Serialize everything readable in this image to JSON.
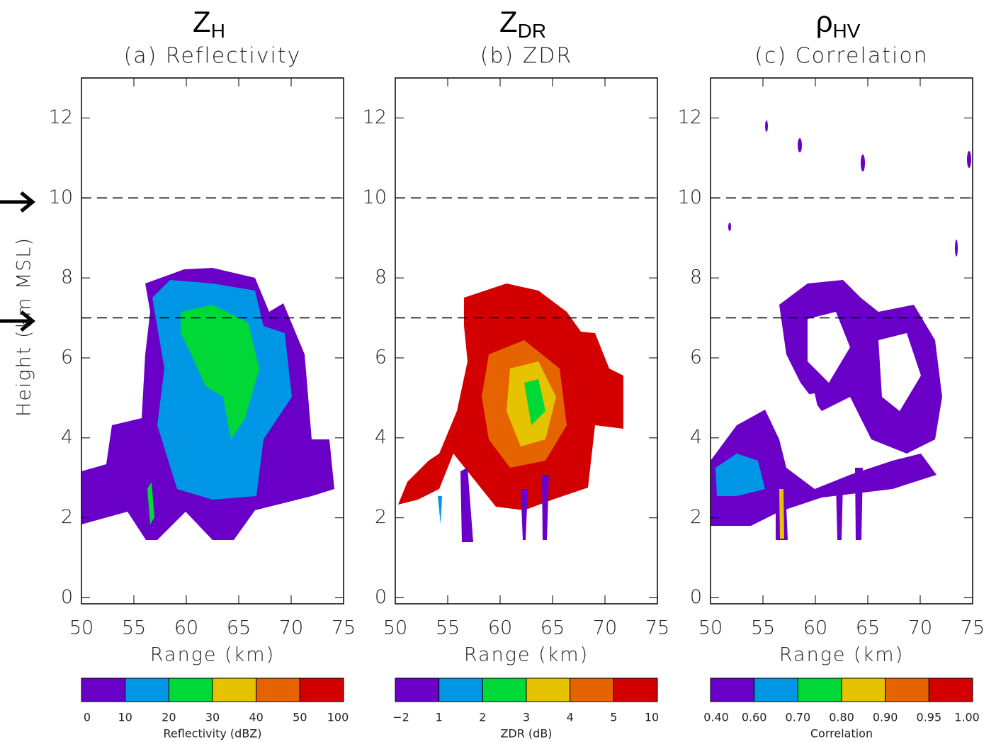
{
  "chart_data": [
    {
      "type": "contour",
      "symbol": "Z",
      "symbol_sub": "H",
      "title": "(a) Reflectivity",
      "xlabel": "Range (km)",
      "ylabel": "Height (km MSL)",
      "xlim": [
        50,
        75
      ],
      "xticks": [
        50,
        55,
        60,
        65,
        70,
        75
      ],
      "ylim": [
        -0.15,
        13
      ],
      "yticks": [
        0,
        2,
        4,
        6,
        8,
        10,
        12
      ],
      "hlines": [
        10,
        7
      ],
      "colorbar": {
        "label": "Reflectivity (dBZ)",
        "bounds": [
          0,
          10,
          20,
          30,
          40,
          50,
          100
        ],
        "colors": [
          "#6a00c8",
          "#0096e6",
          "#00d838",
          "#e6c300",
          "#e66400",
          "#d20000"
        ]
      }
    },
    {
      "type": "contour",
      "symbol": "Z",
      "symbol_sub": "DR",
      "title": "(b) ZDR",
      "xlabel": "Range (km)",
      "xlim": [
        50,
        75
      ],
      "xticks": [
        50,
        55,
        60,
        65,
        70,
        75
      ],
      "ylim": [
        -0.15,
        13
      ],
      "yticks": [
        0,
        2,
        4,
        6,
        8,
        10,
        12
      ],
      "hlines": [
        10,
        7
      ],
      "colorbar": {
        "label": "ZDR (dB)",
        "bounds": [
          {
            "value": -2,
            "label": "−2"
          },
          1,
          2,
          3,
          4,
          5,
          10
        ],
        "colors": [
          "#6a00c8",
          "#0096e6",
          "#00d838",
          "#e6c300",
          "#e66400",
          "#d20000"
        ]
      }
    },
    {
      "type": "contour",
      "symbol": "ρ",
      "symbol_sub": "HV",
      "title": "(c) Correlation",
      "xlabel": "Range (km)",
      "xlim": [
        50,
        75
      ],
      "xticks": [
        50,
        55,
        60,
        65,
        70,
        75
      ],
      "ylim": [
        -0.15,
        13
      ],
      "yticks": [
        0,
        2,
        4,
        6,
        8,
        10,
        12
      ],
      "hlines": [
        10,
        7
      ],
      "colorbar": {
        "label": "Correlation",
        "bounds": [
          {
            "value": 0.4,
            "label": "0.40"
          },
          {
            "value": 0.6,
            "label": "0.60"
          },
          {
            "value": 0.7,
            "label": "0.70"
          },
          {
            "value": 0.8,
            "label": "0.80"
          },
          {
            "value": 0.9,
            "label": "0.90"
          },
          {
            "value": 0.95,
            "label": "0.95"
          },
          {
            "value": 1,
            "label": "1.00"
          }
        ],
        "colors": [
          "#6a00c8",
          "#0096e6",
          "#00d838",
          "#e6c300",
          "#e66400",
          "#d20000"
        ]
      }
    }
  ]
}
